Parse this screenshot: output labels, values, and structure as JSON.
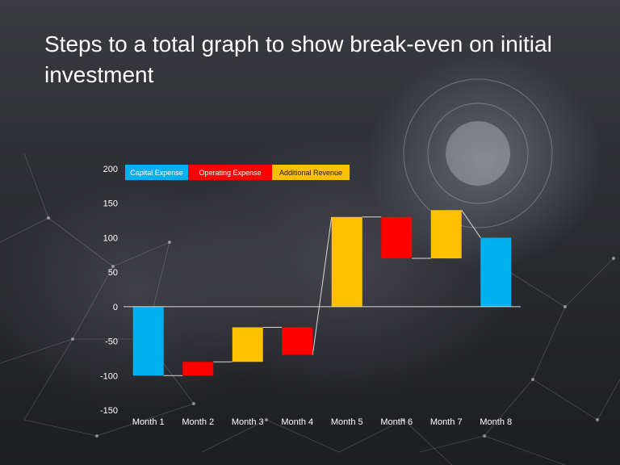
{
  "slide": {
    "title": "Steps to  a total graph to show break-even on initial investment"
  },
  "colors": {
    "capital": "#00b0f0",
    "operating": "#ff0000",
    "revenue": "#ffc000",
    "axis": "#d9d9d9",
    "text": "#ffffff"
  },
  "chart_data": {
    "type": "bar",
    "subtype": "waterfall",
    "title": "",
    "xlabel": "",
    "ylabel": "",
    "ylim": [
      -150,
      200
    ],
    "yticks": [
      200,
      150,
      100,
      50,
      0,
      -50,
      -100,
      -150
    ],
    "categories": [
      "Month 1",
      "Month 2",
      "Month 3",
      "Month 4",
      "Month 5",
      "Month 6",
      "Month 7",
      "Month 8"
    ],
    "legend": {
      "position": "top-left",
      "entries": [
        {
          "label": "Capital Expense",
          "color": "#00b0f0",
          "text_color": "#ffffff"
        },
        {
          "label": "Operating Expense",
          "color": "#ff0000",
          "text_color": "#ffffff"
        },
        {
          "label": "Additional Revenue",
          "color": "#ffc000",
          "text_color": "#1a1a1a"
        }
      ]
    },
    "bars": [
      {
        "category": "Month 1",
        "series": "Capital Expense",
        "start": 0,
        "end": -100
      },
      {
        "category": "Month 2",
        "series": "Operating Expense",
        "start": -100,
        "end": -80
      },
      {
        "category": "Month 3",
        "series": "Additional Revenue",
        "start": -80,
        "end": -30
      },
      {
        "category": "Month 4",
        "series": "Operating Expense",
        "start": -30,
        "end": -70
      },
      {
        "category": "Month 5",
        "series": "Additional Revenue",
        "start": 0,
        "end": 130
      },
      {
        "category": "Month 6",
        "series": "Operating Expense",
        "start": 130,
        "end": 70
      },
      {
        "category": "Month 7",
        "series": "Additional Revenue",
        "start": 70,
        "end": 140
      },
      {
        "category": "Month 8",
        "series": "Capital Expense",
        "start": 0,
        "end": 100
      }
    ],
    "connectors": true,
    "grid": false
  }
}
